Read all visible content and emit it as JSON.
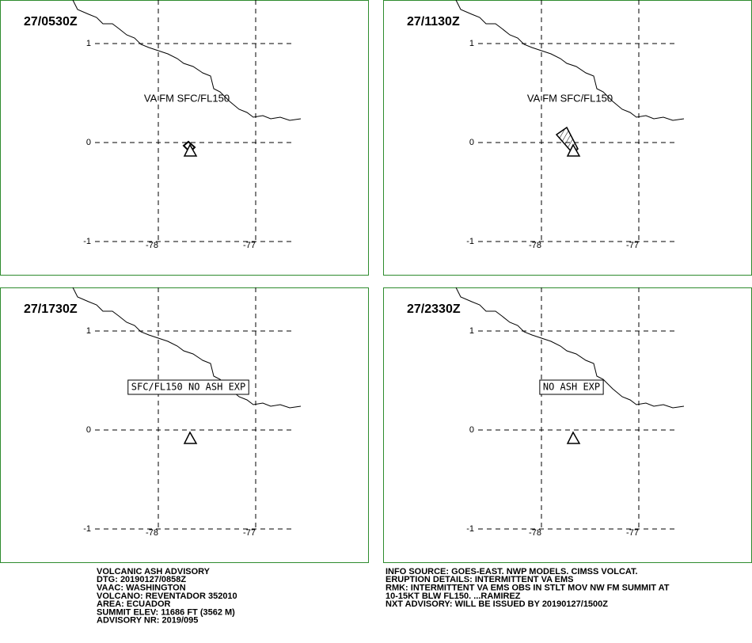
{
  "panels": [
    {
      "time": "27/0530Z",
      "annotation": "VA FM SFC/FL150"
    },
    {
      "time": "27/1130Z",
      "annotation": "VA FM SFC/FL150"
    },
    {
      "time": "27/1730Z",
      "annotation": "SFC/FL150 NO ASH EXP"
    },
    {
      "time": "27/2330Z",
      "annotation": "NO ASH EXP"
    }
  ],
  "grid": {
    "lat_labels": [
      "1",
      "0",
      "-1"
    ],
    "lon_labels": [
      "-78",
      "-77"
    ]
  },
  "advisory": {
    "left": [
      "VOLCANIC ASH ADVISORY",
      "DTG: 20190127/0858Z",
      "VAAC: WASHINGTON",
      "VOLCANO: REVENTADOR 352010",
      "AREA: ECUADOR",
      "SUMMIT ELEV: 11686 FT (3562 M)",
      "ADVISORY NR: 2019/095"
    ],
    "right": [
      "INFO SOURCE: GOES-EAST. NWP MODELS. CIMSS VOLCAT.",
      "ERUPTION DETAILS: INTERMITTENT VA EMS",
      "RMK: INTERMITTENT VA EMS OBS IN STLT MOV NW FM SUMMIT AT",
      "10-15KT BLW FL150. ...RAMIREZ",
      "NXT ADVISORY: WILL BE ISSUED BY 20190127/1500Z"
    ]
  }
}
